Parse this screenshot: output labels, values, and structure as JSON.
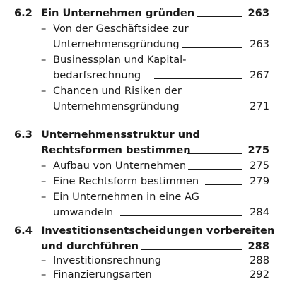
{
  "sections": [
    {
      "number": "6.2",
      "title_lines": [
        "Ein Unternehmen gründen"
      ],
      "page": "263",
      "entries": [
        {
          "lines": [
            "Von der Geschäftsidee zur",
            "Unternehmensgründung"
          ],
          "page": "263"
        },
        {
          "lines": [
            "Businessplan und Kapital-",
            "bedarfsrechnung"
          ],
          "page": "267"
        },
        {
          "lines": [
            "Chancen und Risiken der",
            "Unternehmensgründung"
          ],
          "page": "271"
        }
      ]
    },
    {
      "number": "6.3",
      "title_lines": [
        "Unternehmensstruktur und",
        "Rechtsformen bestimmen"
      ],
      "page": "275",
      "entries": [
        {
          "lines": [
            "Aufbau von Unternehmen"
          ],
          "page": "275"
        },
        {
          "lines": [
            "Eine Rechtsform bestimmen"
          ],
          "page": "279"
        },
        {
          "lines": [
            "Ein Unternehmen in eine AG",
            "umwandeln"
          ],
          "page": "284"
        }
      ]
    },
    {
      "number": "6.4",
      "title_lines": [
        "Investitionsentscheidungen vorbereiten",
        "und durchführen"
      ],
      "page": "288",
      "entries": [
        {
          "lines": [
            "Investitionsrechnung"
          ],
          "page": "288"
        },
        {
          "lines": [
            "Finanzierungsarten"
          ],
          "page": "292"
        }
      ]
    }
  ],
  "dash_glyph": "–",
  "colors": {
    "text": "#1a1a1a",
    "background": "#ffffff"
  }
}
